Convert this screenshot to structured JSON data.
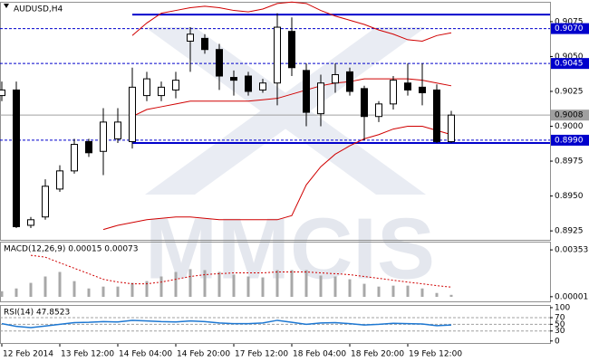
{
  "chart_data": [
    {
      "type": "candlestick",
      "title": "AUDUSD,H4",
      "watermark": "MMCIS",
      "categories": [
        "12 Feb 2014",
        null,
        null,
        null,
        "13 Feb 12:00",
        null,
        null,
        null,
        "14 Feb 04:00",
        null,
        null,
        null,
        "14 Feb 20:00",
        null,
        null,
        null,
        "17 Feb 12:00",
        null,
        null,
        null,
        "18 Feb 04:00",
        null,
        null,
        null,
        "18 Feb 20:00",
        null,
        null,
        null,
        "19 Feb 12:00",
        null,
        null,
        null
      ],
      "open": [
        0.9022,
        0.9026,
        0.8929,
        0.8935,
        0.8955,
        0.8968,
        0.8989,
        0.8982,
        0.8991,
        0.8989,
        0.9022,
        0.9022,
        0.9026,
        0.9061,
        0.9063,
        0.9055,
        0.9035,
        0.9036,
        0.9026,
        0.9031,
        0.9068,
        0.904,
        0.9009,
        0.9031,
        0.9039,
        0.9027,
        0.9007,
        0.9016,
        0.9031,
        0.9028,
        0.9026,
        0.8989
      ],
      "high": [
        0.9032,
        0.9032,
        0.8935,
        0.8962,
        0.8972,
        0.8991,
        0.8991,
        0.9013,
        0.9013,
        0.9042,
        0.9039,
        0.9032,
        0.9039,
        0.9071,
        0.9066,
        0.9059,
        0.904,
        0.9039,
        0.9034,
        0.9081,
        0.9078,
        0.9045,
        0.9037,
        0.9045,
        0.9042,
        0.9029,
        0.9018,
        0.9036,
        0.9045,
        0.9045,
        0.903,
        0.9011
      ],
      "low": [
        0.9018,
        0.8927,
        0.8927,
        0.8933,
        0.8953,
        0.8966,
        0.8978,
        0.8965,
        0.8988,
        0.8984,
        0.9018,
        0.9018,
        0.902,
        0.9039,
        0.9052,
        0.9026,
        0.9022,
        0.9022,
        0.9024,
        0.9015,
        0.9036,
        0.9,
        0.9,
        0.9024,
        0.9022,
        0.899,
        0.9003,
        0.9012,
        0.9022,
        0.9015,
        0.8988,
        0.8988
      ],
      "close": [
        0.9026,
        0.8928,
        0.8933,
        0.8957,
        0.8968,
        0.8987,
        0.8981,
        0.9003,
        0.9003,
        0.9028,
        0.9034,
        0.9028,
        0.9033,
        0.9066,
        0.9055,
        0.9036,
        0.9033,
        0.9025,
        0.9031,
        0.9071,
        0.9042,
        0.901,
        0.9031,
        0.9037,
        0.9025,
        0.9007,
        0.9016,
        0.9033,
        0.9026,
        0.9024,
        0.8989,
        0.9008
      ],
      "up_color": "#ffffff",
      "down_color": "#000000",
      "bands": {
        "color": "#d00000",
        "upper": [
          null,
          null,
          null,
          null,
          null,
          null,
          null,
          null,
          null,
          0.9065,
          0.9074,
          0.9081,
          0.9083,
          0.9085,
          0.9086,
          0.9085,
          0.9083,
          0.9082,
          0.9084,
          0.9088,
          0.9089,
          0.9088,
          0.9083,
          0.9079,
          0.9076,
          0.9073,
          0.9069,
          0.9066,
          0.9062,
          0.9061,
          0.9065,
          0.9067
        ],
        "middle": [
          null,
          null,
          null,
          null,
          null,
          null,
          null,
          null,
          null,
          0.9007,
          0.9012,
          0.9014,
          0.9016,
          0.9018,
          0.9018,
          0.9018,
          0.9018,
          0.9018,
          0.9019,
          0.902,
          0.9023,
          0.9026,
          0.9029,
          0.9031,
          0.9032,
          0.9034,
          0.9034,
          0.9034,
          0.9034,
          0.9033,
          0.9031,
          0.9029
        ],
        "lower": [
          null,
          null,
          null,
          null,
          null,
          null,
          null,
          0.8926,
          0.8929,
          0.8931,
          0.8933,
          0.8934,
          0.8935,
          0.8935,
          0.8934,
          0.8933,
          0.8933,
          0.8933,
          0.8933,
          0.8933,
          0.8936,
          0.8958,
          0.8971,
          0.898,
          0.8986,
          0.8991,
          0.8994,
          0.8998,
          0.9,
          0.9,
          0.8997,
          0.8994
        ]
      },
      "levels": [
        {
          "value": 0.907,
          "label": "0.9070",
          "style": "dashed",
          "color": "#0000cc",
          "text_color": "#ffffff"
        },
        {
          "value": 0.9045,
          "label": "0.9045",
          "style": "dashed",
          "color": "#0000cc",
          "text_color": "#ffffff"
        },
        {
          "value": 0.9008,
          "label": "0.9008",
          "style": "solid",
          "color": "#a0a0a0",
          "text_color": "#000000"
        },
        {
          "value": 0.899,
          "label": "0.8990",
          "style": "dashed",
          "color": "#0000cc",
          "text_color": "#ffffff"
        }
      ],
      "trendlines": [
        {
          "start": 9,
          "value": 0.908,
          "color": "#0000cc"
        },
        {
          "start": 9,
          "value": 0.8988,
          "color": "#0000cc"
        }
      ],
      "ylim": [
        0.89186,
        0.90892
      ],
      "yticks": [
        0.9075,
        {
          "value": 0.905,
          "label": "0.9050"
        },
        0.9025,
        {
          "value": 0.9,
          "label": "0.9000"
        },
        0.8975,
        {
          "value": 0.895,
          "label": "0.8950"
        },
        0.8925
      ]
    },
    {
      "type": "macd",
      "title": "MACD(12,26,9) 0.00015 0.00073",
      "values": [
        0.00042,
        0.00063,
        0.00105,
        0.00153,
        0.00187,
        0.00118,
        0.00063,
        0.00077,
        0.00077,
        0.00105,
        0.00118,
        0.00153,
        0.00187,
        0.00208,
        0.00201,
        0.00187,
        0.00167,
        0.00153,
        0.00146,
        0.00201,
        0.00201,
        0.00201,
        0.0016,
        0.00153,
        0.00132,
        0.00098,
        0.00077,
        0.00084,
        0.00084,
        0.00063,
        0.00029,
        0.00015
      ],
      "color": "#a8a8a8",
      "signal": [
        null,
        null,
        0.00312,
        0.00298,
        0.00256,
        0.00215,
        0.00174,
        0.00132,
        0.00111,
        0.00098,
        0.00098,
        0.00111,
        0.00132,
        0.00153,
        0.00167,
        0.00174,
        0.0018,
        0.0018,
        0.0018,
        0.00187,
        0.00187,
        0.00187,
        0.0018,
        0.00174,
        0.00167,
        0.00153,
        0.00139,
        0.00125,
        0.00111,
        0.00098,
        0.00084,
        0.00073
      ],
      "signal_color": "#d00000",
      "ylim": [
        -0.00034,
        0.00415
      ],
      "yticks": [
        0.00353,
        1e-05
      ]
    },
    {
      "type": "line",
      "title": "RSI(14) 47.8523",
      "values": [
        52,
        44,
        40,
        45,
        50,
        55,
        56,
        58,
        57,
        62,
        60,
        58,
        57,
        60,
        58,
        54,
        52,
        52,
        54,
        62,
        56,
        50,
        54,
        55,
        52,
        48,
        50,
        53,
        52,
        51,
        46,
        47.8523
      ],
      "color": "#1e78d2",
      "levels": [
        70,
        50,
        30
      ],
      "ylim": [
        -6,
        108
      ],
      "yticks": [
        100,
        70,
        50,
        30,
        0
      ]
    }
  ]
}
